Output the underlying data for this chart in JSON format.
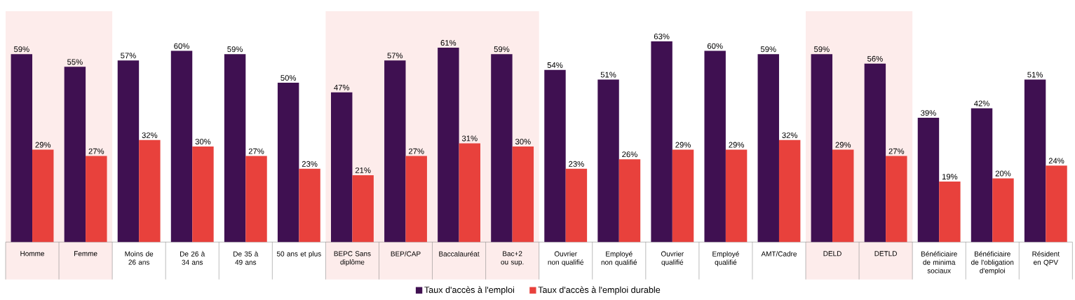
{
  "chart_data": {
    "type": "bar",
    "categories": [
      "Homme",
      "Femme",
      "Moins de 26 ans",
      "De 26 à 34 ans",
      "De 35 à 49 ans",
      "50 ans et plus",
      "BEPC Sans diplôme",
      "BEP/CAP",
      "Baccalauréat",
      "Bac+2 ou sup.",
      "Ouvrier non qualifié",
      "Employé non qualifié",
      "Ouvrier qualifié",
      "Employé qualifié",
      "AMT/Cadre",
      "DELD",
      "DETLD",
      "Bénéficiaire de minima sociaux",
      "Bénéficiaire de l'obligation d'emploi",
      "Résident en QPV"
    ],
    "series": [
      {
        "name": "Taux d'accès à l'emploi",
        "color": "#3f1051",
        "values": [
          59,
          55,
          57,
          60,
          59,
          50,
          47,
          57,
          61,
          59,
          54,
          51,
          63,
          60,
          59,
          59,
          56,
          39,
          42,
          51
        ],
        "value_labels": [
          "59%",
          "55%",
          "57%",
          "60%",
          "59%",
          "50%",
          "47%",
          "57%",
          "61%",
          "59%",
          "54%",
          "51%",
          "63%",
          "60%",
          "59%",
          "59%",
          "56%",
          "39%",
          "42%",
          "51%"
        ]
      },
      {
        "name": "Taux d'accès à l'emploi durable",
        "color": "#e8413c",
        "values": [
          29,
          27,
          32,
          30,
          27,
          23,
          21,
          27,
          31,
          30,
          23,
          26,
          29,
          29,
          32,
          29,
          27,
          19,
          20,
          24
        ],
        "value_labels": [
          "29%",
          "27%",
          "32%",
          "30%",
          "27%",
          "23%",
          "21%",
          "27%",
          "31%",
          "30%",
          "23%",
          "26%",
          "29%",
          "29%",
          "32%",
          "29%",
          "27%",
          "19%",
          "20%",
          "24%"
        ]
      }
    ],
    "bands": [
      {
        "axis": "x",
        "from": "Homme",
        "to": "Femme",
        "color": "#fdeceb"
      },
      {
        "axis": "x",
        "from": "BEPC Sans diplôme",
        "to": "Bac+2 ou sup.",
        "color": "#fdeceb"
      },
      {
        "axis": "x",
        "from": "DELD",
        "to": "DETLD",
        "color": "#fdeceb"
      }
    ],
    "legend": "bottom"
  }
}
